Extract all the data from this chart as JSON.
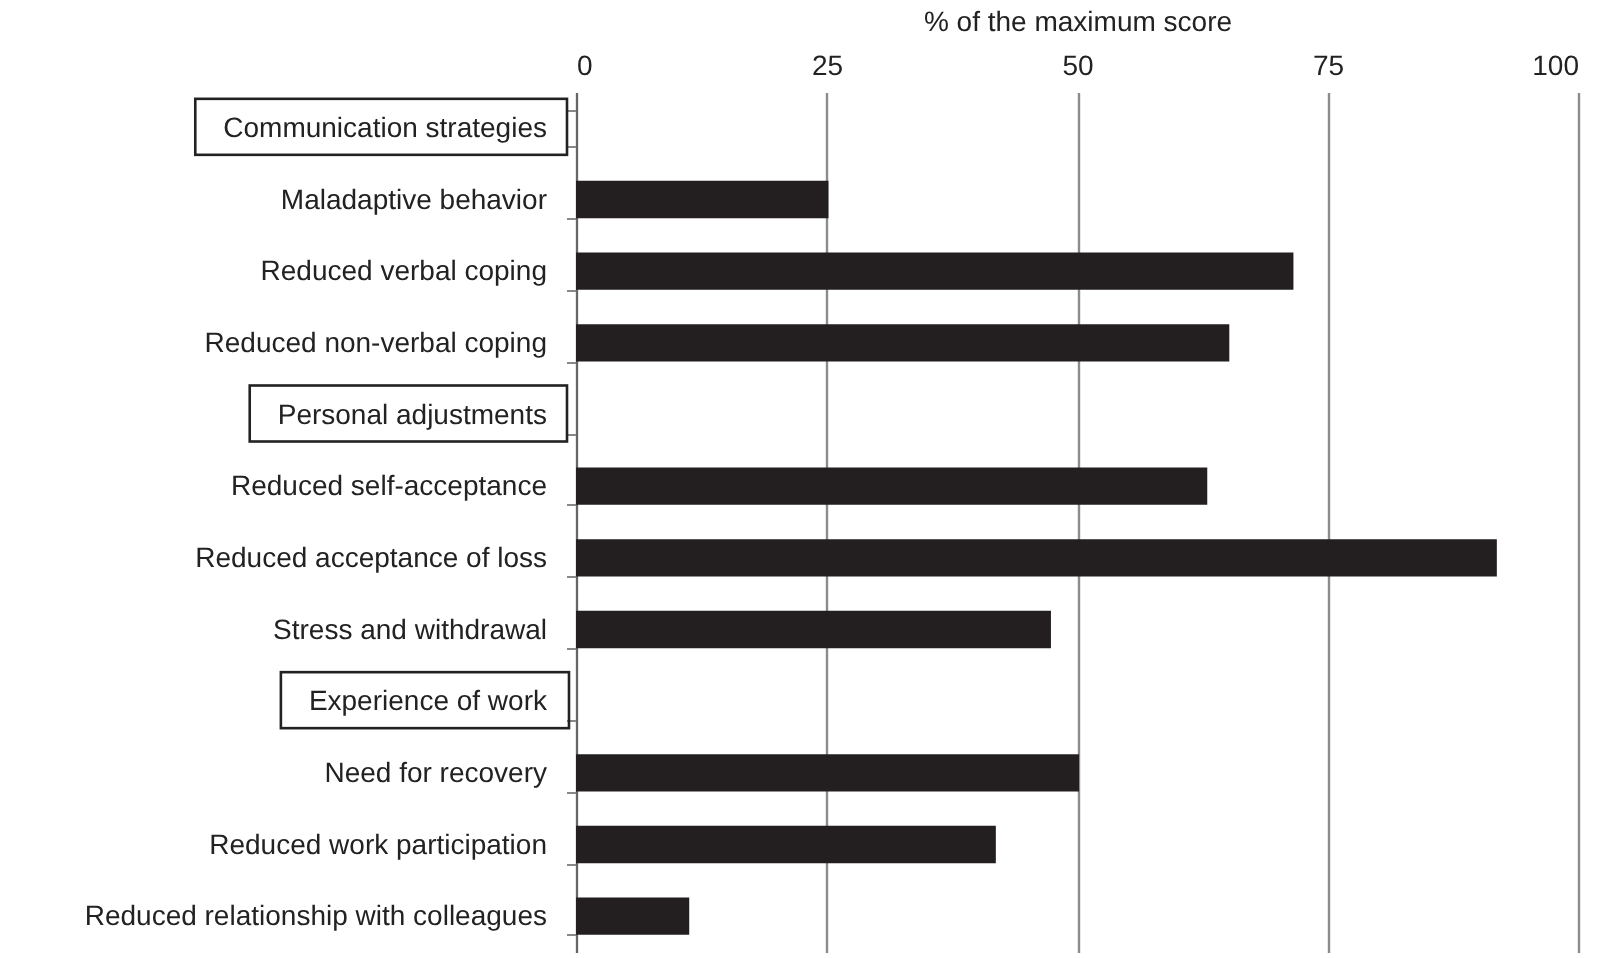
{
  "chart_data": {
    "type": "bar",
    "orientation": "horizontal",
    "xlabel": "%  of the maximum score",
    "categories": [
      "Communication strategies",
      "Maladaptive behavior",
      "Reduced verbal coping",
      "Reduced non-verbal coping",
      "Personal adjustments",
      "Reduced self-acceptance",
      "Reduced acceptance of loss",
      "Stress and withdrawal",
      "Experience of work",
      "Need for recovery",
      "Reduced work participation",
      "Reduced relationship with colleagues"
    ],
    "values": [
      null,
      25.2,
      71.6,
      65.2,
      null,
      63.0,
      91.9,
      47.4,
      null,
      50.2,
      41.9,
      11.3
    ],
    "color": "#231f20",
    "xlim": [
      0,
      100
    ],
    "xticks": [
      0,
      25,
      50,
      75,
      100
    ],
    "grid": "x"
  }
}
